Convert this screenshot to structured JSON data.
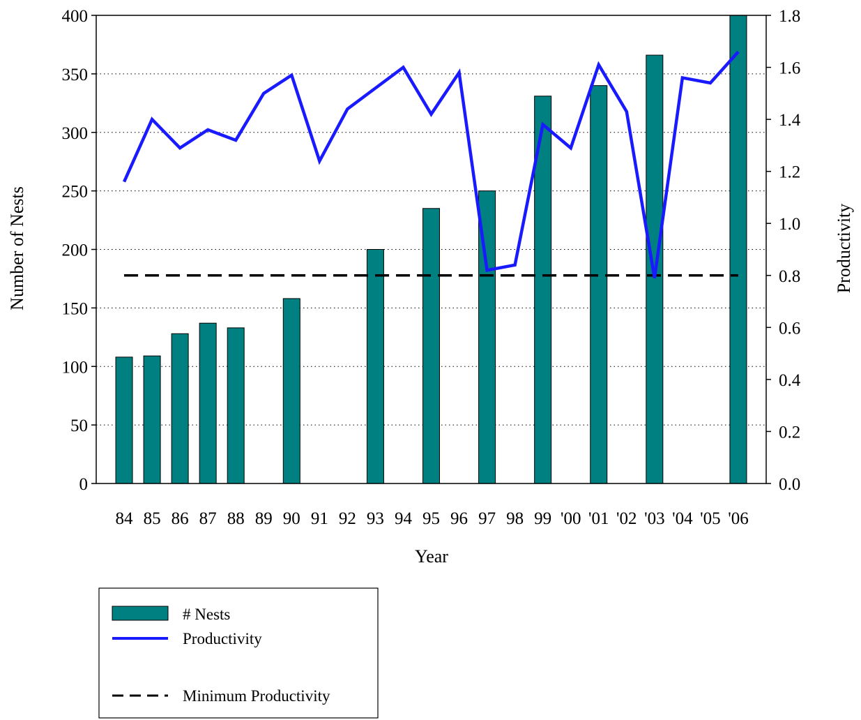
{
  "chart_data": {
    "type": "bar",
    "categories": [
      "84",
      "85",
      "86",
      "87",
      "88",
      "89",
      "90",
      "91",
      "92",
      "93",
      "94",
      "95",
      "96",
      "97",
      "98",
      "99",
      "'00",
      "'01",
      "'02",
      "'03",
      "'04",
      "'05",
      "'06"
    ],
    "xlabel": "Year",
    "ylabel": "Number of Nests",
    "y2label": "Productivity",
    "ylim": [
      0,
      400
    ],
    "y2lim": [
      0.0,
      1.8
    ],
    "yticks": [
      "0",
      "50",
      "100",
      "150",
      "200",
      "250",
      "300",
      "350",
      "400"
    ],
    "y2ticks": [
      "0.0",
      "0.2",
      "0.4",
      "0.6",
      "0.8",
      "1.0",
      "1.2",
      "1.4",
      "1.6",
      "1.8"
    ],
    "grid": "horizontal dotted",
    "legend_position": "bottom-left",
    "series": [
      {
        "name": "# Nests",
        "type": "bar",
        "axis": "left",
        "color": "#008080",
        "values": [
          108,
          109,
          128,
          137,
          133,
          null,
          158,
          null,
          null,
          200,
          null,
          235,
          null,
          250,
          null,
          331,
          null,
          340,
          null,
          366,
          null,
          null,
          400
        ]
      },
      {
        "name": "Productivity",
        "type": "line",
        "axis": "right",
        "color": "#1a1aff",
        "values": [
          1.16,
          1.4,
          1.29,
          1.36,
          1.32,
          1.5,
          1.57,
          1.24,
          1.44,
          1.52,
          1.6,
          1.42,
          1.58,
          0.82,
          0.84,
          1.38,
          1.29,
          1.61,
          1.43,
          0.79,
          1.56,
          1.54,
          1.66
        ]
      },
      {
        "name": "Minimum Productivity",
        "type": "line",
        "style": "dashed",
        "axis": "right",
        "color": "#000000",
        "values": [
          0.8,
          0.8,
          0.8,
          0.8,
          0.8,
          0.8,
          0.8,
          0.8,
          0.8,
          0.8,
          0.8,
          0.8,
          0.8,
          0.8,
          0.8,
          0.8,
          0.8,
          0.8,
          0.8,
          0.8,
          0.8,
          0.8,
          0.8
        ]
      }
    ]
  }
}
